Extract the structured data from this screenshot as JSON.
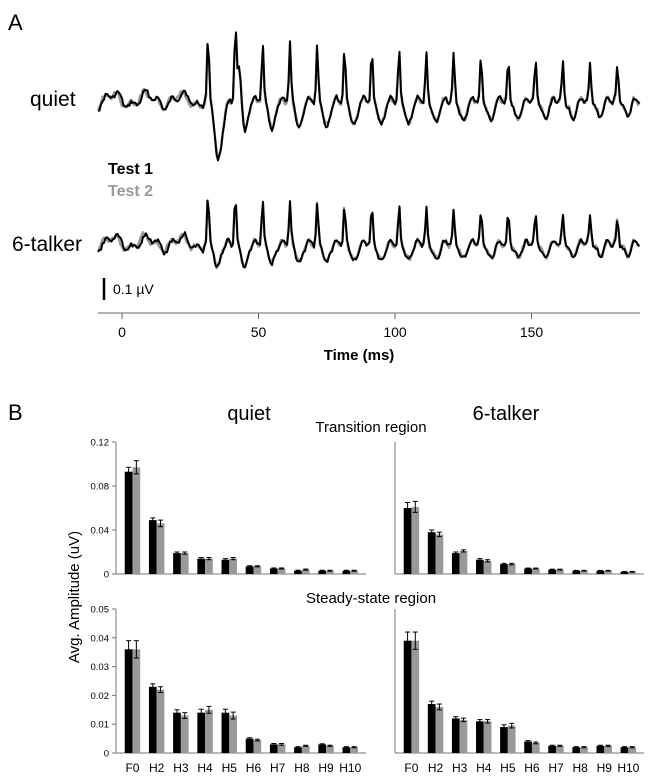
{
  "panel_a": {
    "letter": "A",
    "rows": [
      {
        "id": "quiet",
        "label": "quiet"
      },
      {
        "id": "talker",
        "label": "6-talker"
      }
    ],
    "legend": [
      {
        "label": "Test 1",
        "color": "#000000"
      },
      {
        "label": "Test 2",
        "color": "#999999"
      }
    ],
    "scale_bar": "0.1 µV",
    "x_axis_title": "Time (ms)",
    "x_ticks": [
      "0",
      "50",
      "100",
      "150"
    ]
  },
  "panel_b": {
    "letter": "B",
    "columns": [
      {
        "id": "quiet",
        "title": "quiet"
      },
      {
        "id": "talker",
        "title": "6-talker"
      }
    ],
    "regions": [
      {
        "id": "transition",
        "title": "Transition region",
        "y_ticks": [
          "0",
          "0.04",
          "0.08",
          "0.12"
        ]
      },
      {
        "id": "steady",
        "title": "Steady-state region",
        "y_ticks": [
          "0",
          "0.01",
          "0.02",
          "0.03",
          "0.04",
          "0.05"
        ]
      }
    ],
    "y_axis_title": "Avg. Amplitude (uV)",
    "categories": [
      "F0",
      "H2",
      "H3",
      "H4",
      "H5",
      "H6",
      "H7",
      "H8",
      "H9",
      "H10"
    ],
    "colors": {
      "test1": "#000000",
      "test2": "#999999"
    }
  },
  "chart_data": [
    {
      "type": "line",
      "description_label": "quiet",
      "xlabel": "Time (ms)",
      "xlim": [
        -10,
        190
      ],
      "series": [
        {
          "name": "Test 1",
          "color": "#000000"
        },
        {
          "name": "Test 2",
          "color": "#999999"
        }
      ]
    },
    {
      "type": "line",
      "description_label": "6-talker",
      "xlabel": "Time (ms)",
      "xlim": [
        -10,
        190
      ],
      "series": [
        {
          "name": "Test 1",
          "color": "#000000"
        },
        {
          "name": "Test 2",
          "color": "#999999"
        }
      ]
    },
    {
      "type": "bar",
      "column": "quiet",
      "region": "Transition region",
      "ylabel": "Avg. Amplitude (uV)",
      "ylim": [
        0,
        0.12
      ],
      "categories": [
        "F0",
        "H2",
        "H3",
        "H4",
        "H5",
        "H6",
        "H7",
        "H8",
        "H9",
        "H10"
      ],
      "series": [
        {
          "name": "Test 1",
          "values": [
            0.093,
            0.049,
            0.019,
            0.014,
            0.013,
            0.007,
            0.005,
            0.003,
            0.003,
            0.003
          ],
          "errors": [
            0.004,
            0.002,
            0.001,
            0.001,
            0.001,
            0.0005,
            0.0005,
            0.0005,
            0.0004,
            0.0004
          ]
        },
        {
          "name": "Test 2",
          "values": [
            0.097,
            0.046,
            0.019,
            0.014,
            0.014,
            0.007,
            0.005,
            0.004,
            0.003,
            0.003
          ],
          "errors": [
            0.006,
            0.003,
            0.001,
            0.001,
            0.001,
            0.0005,
            0.0005,
            0.0005,
            0.0004,
            0.0004
          ]
        }
      ]
    },
    {
      "type": "bar",
      "column": "6-talker",
      "region": "Transition region",
      "ylabel": "Avg. Amplitude (uV)",
      "ylim": [
        0,
        0.12
      ],
      "categories": [
        "F0",
        "H2",
        "H3",
        "H4",
        "H5",
        "H6",
        "H7",
        "H8",
        "H9",
        "H10"
      ],
      "series": [
        {
          "name": "Test 1",
          "values": [
            0.06,
            0.038,
            0.019,
            0.013,
            0.009,
            0.005,
            0.004,
            0.003,
            0.003,
            0.002
          ],
          "errors": [
            0.005,
            0.002,
            0.001,
            0.001,
            0.0007,
            0.0004,
            0.0004,
            0.0003,
            0.0003,
            0.0003
          ]
        },
        {
          "name": "Test 2",
          "values": [
            0.061,
            0.036,
            0.021,
            0.012,
            0.009,
            0.005,
            0.004,
            0.003,
            0.003,
            0.002
          ],
          "errors": [
            0.005,
            0.002,
            0.001,
            0.001,
            0.0007,
            0.0004,
            0.0004,
            0.0003,
            0.0003,
            0.0003
          ]
        }
      ]
    },
    {
      "type": "bar",
      "column": "quiet",
      "region": "Steady-state region",
      "ylabel": "Avg. Amplitude (uV)",
      "ylim": [
        0,
        0.05
      ],
      "categories": [
        "F0",
        "H2",
        "H3",
        "H4",
        "H5",
        "H6",
        "H7",
        "H8",
        "H9",
        "H10"
      ],
      "series": [
        {
          "name": "Test 1",
          "values": [
            0.036,
            0.023,
            0.014,
            0.014,
            0.014,
            0.005,
            0.003,
            0.002,
            0.003,
            0.002
          ],
          "errors": [
            0.003,
            0.001,
            0.001,
            0.0012,
            0.0012,
            0.0003,
            0.0003,
            0.0002,
            0.0002,
            0.0002
          ]
        },
        {
          "name": "Test 2",
          "values": [
            0.036,
            0.022,
            0.013,
            0.015,
            0.013,
            0.0045,
            0.003,
            0.0025,
            0.0025,
            0.002
          ],
          "errors": [
            0.003,
            0.001,
            0.001,
            0.0012,
            0.0012,
            0.0003,
            0.0003,
            0.0002,
            0.0002,
            0.0002
          ]
        }
      ]
    },
    {
      "type": "bar",
      "column": "6-talker",
      "region": "Steady-state region",
      "ylabel": "Avg. Amplitude (uV)",
      "ylim": [
        0,
        0.05
      ],
      "categories": [
        "F0",
        "H2",
        "H3",
        "H4",
        "H5",
        "H6",
        "H7",
        "H8",
        "H9",
        "H10"
      ],
      "series": [
        {
          "name": "Test 1",
          "values": [
            0.039,
            0.017,
            0.012,
            0.011,
            0.009,
            0.004,
            0.0025,
            0.002,
            0.0025,
            0.002
          ],
          "errors": [
            0.003,
            0.001,
            0.0006,
            0.0006,
            0.0008,
            0.0003,
            0.0002,
            0.0002,
            0.0002,
            0.0002
          ]
        },
        {
          "name": "Test 2",
          "values": [
            0.039,
            0.016,
            0.0115,
            0.011,
            0.0095,
            0.0035,
            0.0025,
            0.002,
            0.0025,
            0.002
          ],
          "errors": [
            0.003,
            0.001,
            0.0006,
            0.0006,
            0.0008,
            0.0003,
            0.0002,
            0.0002,
            0.0002,
            0.0002
          ]
        }
      ]
    }
  ]
}
